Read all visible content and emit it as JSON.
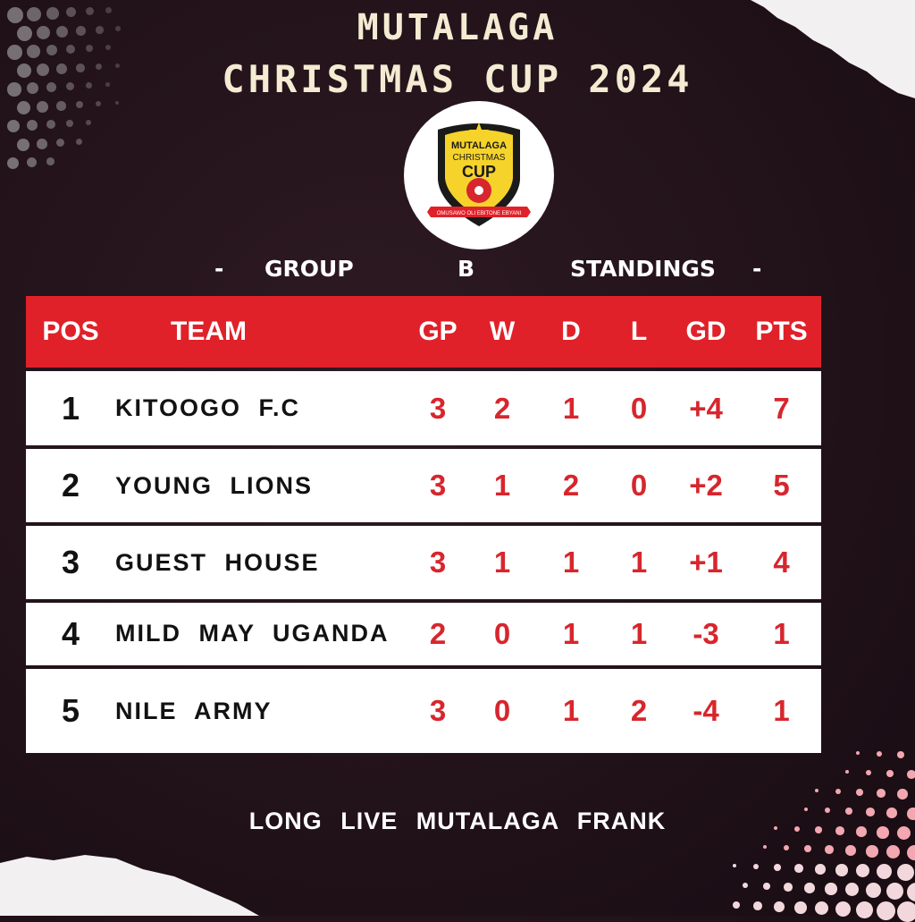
{
  "title_line1": "MUTALAGA",
  "title_line2": "CHRISTMAS CUP 2024",
  "logo": {
    "line1": "MUTALAGA",
    "line2": "CHRISTMAS",
    "line3": "CUP",
    "ribbon": "OMUSAWO OLI EBITONE EBYANI",
    "colors": {
      "shield": "#f5d32a",
      "ribbon": "#e02129",
      "ball": "#d7262d"
    }
  },
  "subtitle": {
    "dash_left": "-",
    "word1": "GROUP",
    "word2": "B",
    "word3": "STANDINGS",
    "dash_right": "-"
  },
  "table": {
    "headers": [
      "POS",
      "TEAM",
      "GP",
      "W",
      "D",
      "L",
      "GD",
      "PTS"
    ],
    "rows": [
      {
        "pos": "1",
        "team": "KITOOGO F.C",
        "gp": "3",
        "w": "2",
        "d": "1",
        "l": "0",
        "gd": "+4",
        "pts": "7"
      },
      {
        "pos": "2",
        "team": "YOUNG LIONS",
        "gp": "3",
        "w": "1",
        "d": "2",
        "l": "0",
        "gd": "+2",
        "pts": "5"
      },
      {
        "pos": "3",
        "team": "GUEST HOUSE",
        "gp": "3",
        "w": "1",
        "d": "1",
        "l": "1",
        "gd": "+1",
        "pts": "4"
      },
      {
        "pos": "4",
        "team": "MILD MAY UGANDA",
        "gp": "2",
        "w": "0",
        "d": "1",
        "l": "1",
        "gd": "-3",
        "pts": "1"
      },
      {
        "pos": "5",
        "team": "NILE ARMY",
        "gp": "3",
        "w": "0",
        "d": "1",
        "l": "2",
        "gd": "-4",
        "pts": "1"
      }
    ]
  },
  "footer": "LONG LIVE MUTALAGA FRANK",
  "colors": {
    "accent": "#e02129",
    "value_text": "#d7262d",
    "background": "#22121a",
    "title": "#f4ecd2"
  }
}
